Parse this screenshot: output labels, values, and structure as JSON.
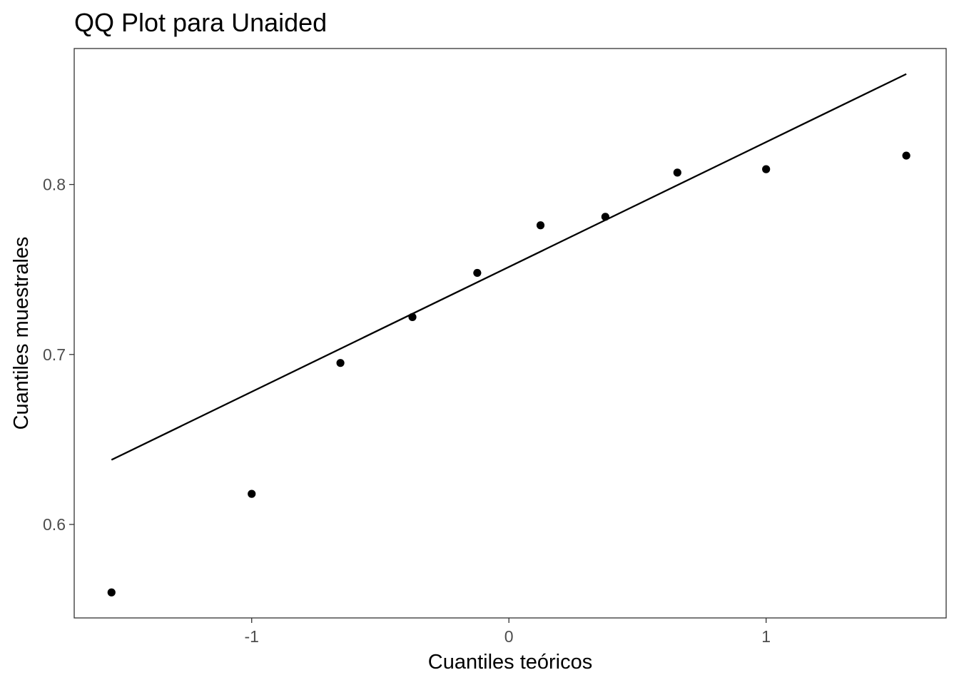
{
  "chart_data": {
    "type": "scatter",
    "title": "QQ Plot para Unaided",
    "xlabel": "Cuantiles teóricos",
    "ylabel": "Cuantiles muestrales",
    "xlim": [
      -1.69,
      1.7
    ],
    "ylim": [
      0.545,
      0.88
    ],
    "x_ticks": [
      {
        "value": -1,
        "label": "-1"
      },
      {
        "value": 0,
        "label": "0"
      },
      {
        "value": 1,
        "label": "1"
      }
    ],
    "y_ticks": [
      {
        "value": 0.6,
        "label": "0.6"
      },
      {
        "value": 0.7,
        "label": "0.7"
      },
      {
        "value": 0.8,
        "label": "0.8"
      }
    ],
    "grid": false,
    "points": [
      {
        "x": -1.545,
        "y": 0.56
      },
      {
        "x": -1.0,
        "y": 0.618
      },
      {
        "x": -0.655,
        "y": 0.695
      },
      {
        "x": -0.375,
        "y": 0.722
      },
      {
        "x": -0.123,
        "y": 0.748
      },
      {
        "x": 0.123,
        "y": 0.776
      },
      {
        "x": 0.375,
        "y": 0.781
      },
      {
        "x": 0.655,
        "y": 0.807
      },
      {
        "x": 1.0,
        "y": 0.809
      },
      {
        "x": 1.545,
        "y": 0.817
      }
    ],
    "reference_line": {
      "x": [
        -1.545,
        1.545
      ],
      "y": [
        0.638,
        0.865
      ]
    }
  }
}
